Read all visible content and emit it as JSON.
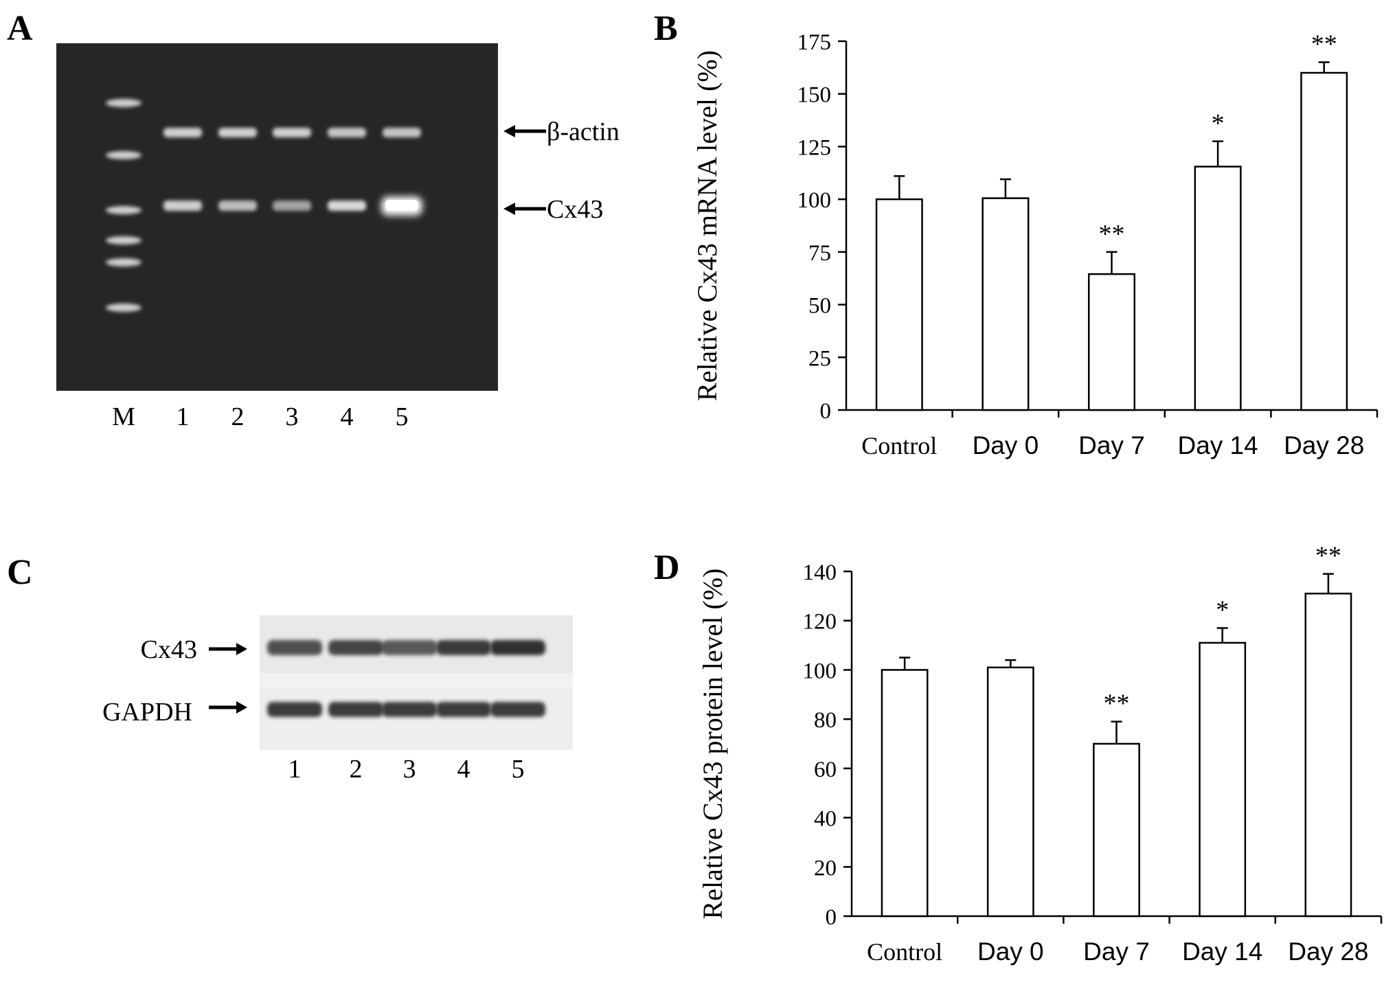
{
  "panels": {
    "a": {
      "letter": "A",
      "lane_labels": [
        "M",
        "1",
        "2",
        "3",
        "4",
        "5"
      ],
      "bands": {
        "top": "β-actin",
        "bottom": "Cx43"
      }
    },
    "c": {
      "letter": "C",
      "lane_labels": [
        "1",
        "2",
        "3",
        "4",
        "5"
      ],
      "bands": {
        "top": "Cx43",
        "bottom": "GAPDH"
      }
    },
    "b": {
      "letter": "B"
    },
    "d": {
      "letter": "D"
    }
  },
  "colors": {
    "gel_background": "#262626",
    "band": "#dcdcdc",
    "bar_fill": "#ffffff",
    "axis": "#000000"
  },
  "chart_data": [
    {
      "type": "bar",
      "panel": "B",
      "categories": [
        "Control",
        "Day 0",
        "Day 7",
        "Day 14",
        "Day 28"
      ],
      "values": [
        100,
        100.5,
        64.5,
        115.5,
        160
      ],
      "errors": [
        11,
        9,
        10.5,
        12,
        5
      ],
      "significance": [
        "",
        "",
        "**",
        "*",
        "**"
      ],
      "ylabel": "Relative Cx43 mRNA level (%)",
      "ylim": [
        0,
        175
      ],
      "yticks": [
        0,
        25,
        50,
        75,
        100,
        125,
        150,
        175
      ]
    },
    {
      "type": "bar",
      "panel": "D",
      "categories": [
        "Control",
        "Day 0",
        "Day 7",
        "Day 14",
        "Day 28"
      ],
      "values": [
        100,
        101,
        70,
        111,
        131
      ],
      "errors": [
        5,
        3,
        9,
        6,
        8
      ],
      "significance": [
        "",
        "",
        "**",
        "*",
        "**"
      ],
      "ylabel": "Relative Cx43 protein level (%)",
      "ylim": [
        0,
        140
      ],
      "yticks": [
        0,
        20,
        40,
        60,
        80,
        100,
        120,
        140
      ]
    }
  ]
}
